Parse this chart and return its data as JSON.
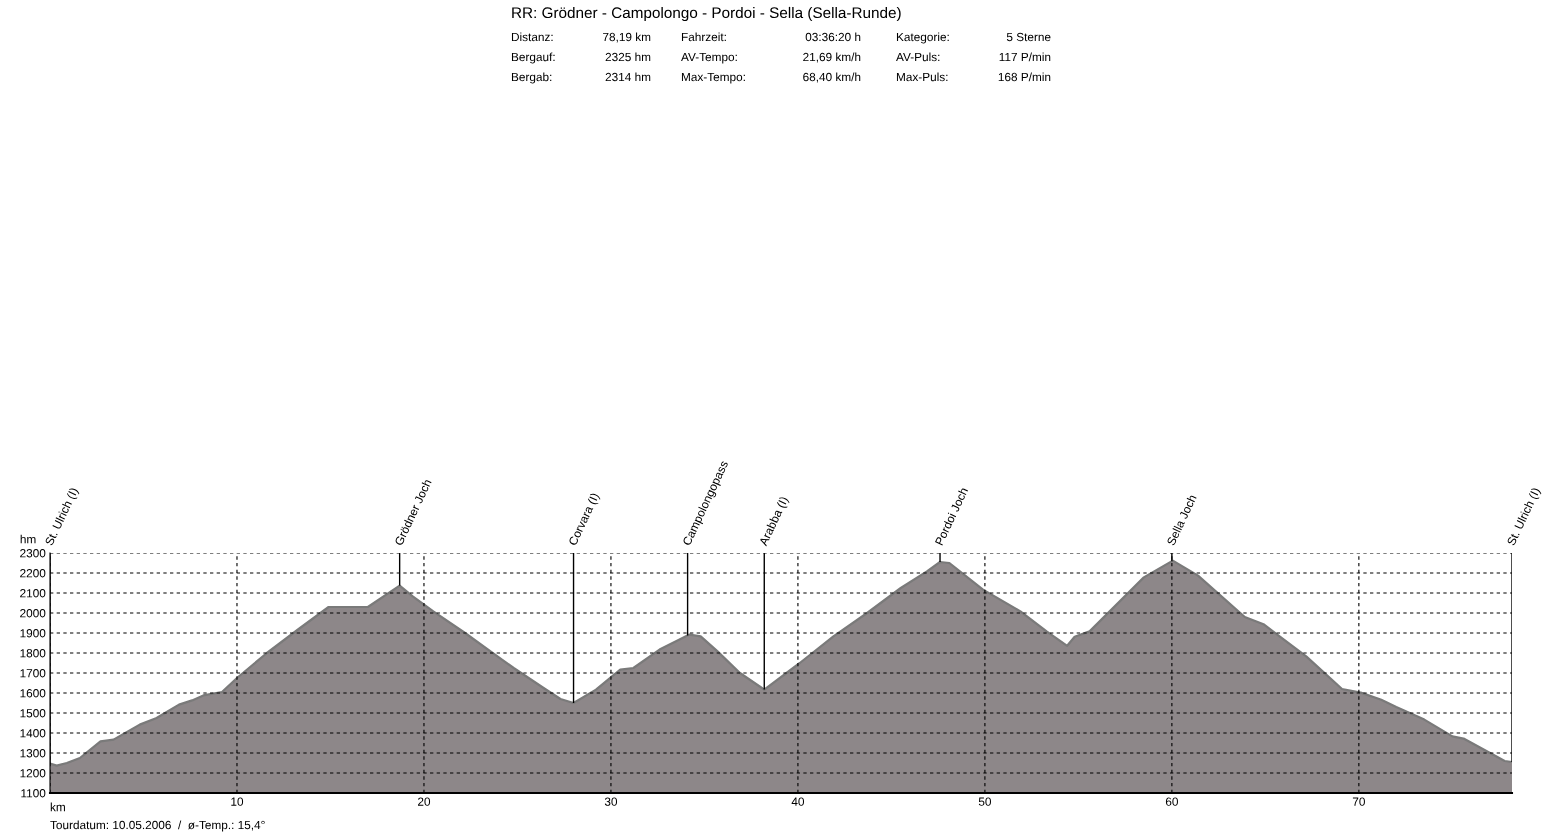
{
  "chart_data": {
    "type": "area",
    "title": "RR: Grödner - Campolongo - Pordoi - Sella (Sella-Runde)",
    "xlabel": "km",
    "ylabel": "hm",
    "annotations": [
      "Distanz:",
      "78,19 km",
      "Fahrzeit:",
      "03:36:20 h",
      "Kategorie:",
      "5 Sterne",
      "Bergauf:",
      "2325 hm",
      "AV-Tempo:",
      "21,69 km/h",
      "AV-Puls:",
      "117 P/min",
      "Bergab:",
      "2314 hm",
      "Max-Tempo:",
      "68,40 km/h",
      "Max-Puls:",
      "168 P/min",
      "Tourdatum: 10.05.2006  /  ø-Temp.: 15,4°"
    ],
    "series": [
      {
        "color": "#8d8789",
        "x": [
          0,
          0.36,
          0.9,
          1.6,
          2.7,
          3.4,
          4.8,
          5.7,
          6.9,
          7.6,
          8.2,
          9.2,
          10,
          11.6,
          13.3,
          14.9,
          17,
          18.7,
          19.4,
          20.5,
          22.2,
          23.8,
          24.8,
          26.4,
          27.3,
          28.0,
          29.2,
          30.5,
          31.2,
          32.6,
          34.2,
          34.8,
          35.7,
          36.9,
          38.2,
          40.1,
          41.9,
          43.7,
          45.5,
          46.9,
          47.6,
          48.1,
          49.9,
          51.9,
          53.3,
          54.4,
          54.8,
          55.6,
          58.5,
          60.05,
          61.4,
          63.9,
          64.9,
          67.2,
          69.1,
          70.1,
          71.2,
          72.0,
          73.5,
          75.0,
          75.6,
          77.8,
          78.19
        ],
        "values": [
          1247,
          1237,
          1250,
          1275,
          1358,
          1367,
          1442,
          1475,
          1542,
          1563,
          1588,
          1605,
          1675,
          1800,
          1920,
          2030,
          2030,
          2137,
          2083,
          2008,
          1900,
          1792,
          1725,
          1625,
          1570,
          1550,
          1617,
          1717,
          1725,
          1817,
          1892,
          1883,
          1808,
          1700,
          1617,
          1750,
          1883,
          2000,
          2125,
          2208,
          2255,
          2250,
          2117,
          2008,
          1908,
          1836,
          1881,
          1908,
          2178,
          2262,
          2187,
          1980,
          1944,
          1782,
          1620,
          1602,
          1566,
          1530,
          1467,
          1383,
          1372,
          1260,
          1255
        ]
      }
    ],
    "xlim": [
      0,
      78.19
    ],
    "ylim": [
      1100,
      2300
    ],
    "xticks": [
      {
        "value": 0,
        "label": null
      },
      10,
      20,
      30,
      40,
      50,
      60,
      70
    ],
    "yticks": [
      1100,
      1200,
      1300,
      1400,
      1500,
      1600,
      1700,
      1800,
      1900,
      2000,
      2100,
      2200,
      2300
    ],
    "grid": true,
    "line_style": "solid",
    "ref_lines": [
      {
        "axis": "x",
        "value": 0,
        "label": "St. Ulrich (I)",
        "color": "#000000"
      },
      {
        "axis": "x",
        "value": 18.7,
        "label": "Grödner Joch",
        "color": "#000000"
      },
      {
        "axis": "x",
        "value": 28.0,
        "label": "Corvara (I)",
        "color": "#000000"
      },
      {
        "axis": "x",
        "value": 34.1,
        "label": "Campolongopass",
        "color": "#000000"
      },
      {
        "axis": "x",
        "value": 38.2,
        "label": "Arabba (I)",
        "color": "#000000"
      },
      {
        "axis": "x",
        "value": 47.6,
        "label": "Pordoi Joch",
        "color": "#000000"
      },
      {
        "axis": "x",
        "value": 60.0,
        "label": "Sella Joch",
        "color": "#000000"
      },
      {
        "axis": "x",
        "value": 78.19,
        "label": "St. Ulrich (I)",
        "color": "#000000"
      }
    ]
  }
}
